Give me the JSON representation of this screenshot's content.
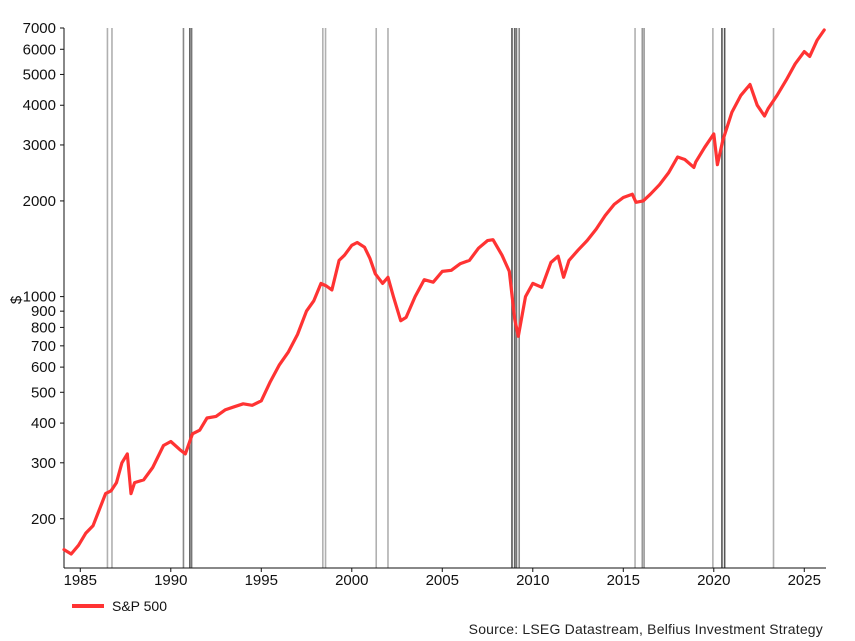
{
  "chart_data": {
    "type": "line",
    "yscale": "log",
    "ylabel": "$",
    "xlabel": "",
    "xlim": [
      1984.1,
      2026.2
    ],
    "ylim": [
      140,
      7000
    ],
    "y_ticks": [
      200,
      300,
      400,
      500,
      600,
      700,
      800,
      900,
      1000,
      2000,
      3000,
      4000,
      5000,
      6000,
      7000
    ],
    "x_ticks": [
      1985,
      1990,
      1995,
      2000,
      2005,
      2010,
      2015,
      2020,
      2025
    ],
    "series": [
      {
        "name": "S&P 500",
        "color": "#ff3333",
        "x": [
          1984.1,
          1984.5,
          1984.9,
          1985.3,
          1985.7,
          1986.0,
          1986.4,
          1986.7,
          1987.0,
          1987.3,
          1987.6,
          1987.8,
          1988.0,
          1988.5,
          1989.0,
          1989.6,
          1990.0,
          1990.5,
          1990.8,
          1991.2,
          1991.6,
          1992.0,
          1992.5,
          1993.0,
          1993.5,
          1994.0,
          1994.5,
          1995.0,
          1995.5,
          1996.0,
          1996.5,
          1997.0,
          1997.5,
          1997.9,
          1998.3,
          1998.6,
          1998.9,
          1999.3,
          1999.6,
          2000.0,
          2000.3,
          2000.7,
          2001.0,
          2001.3,
          2001.7,
          2002.0,
          2002.3,
          2002.7,
          2003.0,
          2003.5,
          2004.0,
          2004.5,
          2005.0,
          2005.5,
          2006.0,
          2006.5,
          2007.0,
          2007.5,
          2007.8,
          2008.3,
          2008.7,
          2009.0,
          2009.2,
          2009.6,
          2010.0,
          2010.5,
          2011.0,
          2011.4,
          2011.7,
          2012.0,
          2012.5,
          2013.0,
          2013.5,
          2014.0,
          2014.5,
          2015.0,
          2015.5,
          2015.7,
          2016.1,
          2016.5,
          2017.0,
          2017.5,
          2018.0,
          2018.4,
          2018.9,
          2019.0,
          2019.5,
          2020.0,
          2020.2,
          2020.5,
          2021.0,
          2021.5,
          2022.0,
          2022.4,
          2022.8,
          2023.0,
          2023.5,
          2024.0,
          2024.5,
          2025.0,
          2025.3,
          2025.7,
          2026.1
        ],
        "values": [
          160,
          155,
          165,
          180,
          190,
          210,
          240,
          245,
          260,
          300,
          320,
          240,
          260,
          265,
          290,
          340,
          350,
          330,
          320,
          370,
          380,
          415,
          420,
          440,
          450,
          460,
          455,
          470,
          540,
          610,
          670,
          760,
          900,
          970,
          1100,
          1080,
          1050,
          1300,
          1350,
          1450,
          1480,
          1430,
          1320,
          1180,
          1100,
          1150,
          1000,
          840,
          860,
          1000,
          1130,
          1110,
          1200,
          1210,
          1270,
          1300,
          1420,
          1500,
          1510,
          1350,
          1200,
          850,
          750,
          1000,
          1100,
          1070,
          1280,
          1340,
          1150,
          1300,
          1400,
          1500,
          1630,
          1800,
          1950,
          2050,
          2100,
          1980,
          2000,
          2100,
          2250,
          2450,
          2750,
          2700,
          2550,
          2650,
          2950,
          3250,
          2600,
          3100,
          3800,
          4300,
          4650,
          4000,
          3700,
          3900,
          4300,
          4800,
          5400,
          5900,
          5700,
          6400,
          6900
        ]
      }
    ],
    "shaded_periods": [
      {
        "x": 1986.5,
        "color": "#b0b0b0"
      },
      {
        "x": 1986.75,
        "color": "#b0b0b0"
      },
      {
        "x": 1990.7,
        "color": "#888888"
      },
      {
        "x": 1991.05,
        "color": "#666666"
      },
      {
        "x": 1991.15,
        "color": "#777777"
      },
      {
        "x": 1998.4,
        "color": "#b0b0b0"
      },
      {
        "x": 1998.55,
        "color": "#b0b0b0"
      },
      {
        "x": 2001.35,
        "color": "#b0b0b0"
      },
      {
        "x": 2002.0,
        "color": "#b0b0b0"
      },
      {
        "x": 2008.85,
        "color": "#555555"
      },
      {
        "x": 2009.0,
        "color": "#666666"
      },
      {
        "x": 2009.1,
        "color": "#777777"
      },
      {
        "x": 2009.25,
        "color": "#888888"
      },
      {
        "x": 2015.65,
        "color": "#b0b0b0"
      },
      {
        "x": 2016.05,
        "color": "#999999"
      },
      {
        "x": 2016.15,
        "color": "#999999"
      },
      {
        "x": 2019.95,
        "color": "#b0b0b0"
      },
      {
        "x": 2020.45,
        "color": "#555555"
      },
      {
        "x": 2020.6,
        "color": "#555555"
      },
      {
        "x": 2023.3,
        "color": "#b0b0b0"
      }
    ],
    "legend": {
      "label": "S&P 500",
      "position": "bottom-left"
    }
  },
  "source_text": "Source: LSEG Datastream, Belfius Investment Strategy"
}
